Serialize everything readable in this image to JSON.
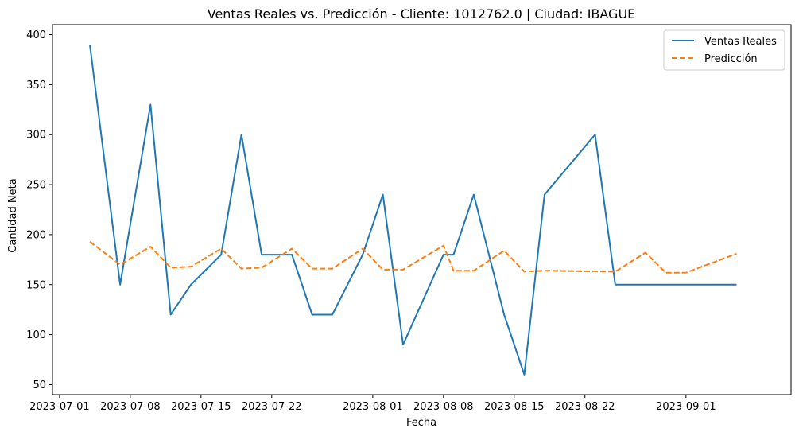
{
  "chart_data": {
    "type": "line",
    "title": "Ventas Reales vs. Predicción - Cliente: 1012762.0 | Ciudad: IBAGUE",
    "xlabel": "Fecha",
    "ylabel": "Cantidad Neta",
    "x_range": [
      "2023-07-01",
      "2023-09-07"
    ],
    "ylim": [
      40,
      410
    ],
    "x_ticks": [
      "2023-07-01",
      "2023-07-08",
      "2023-07-15",
      "2023-07-22",
      "2023-08-01",
      "2023-08-08",
      "2023-08-15",
      "2023-08-22",
      "2023-09-01"
    ],
    "y_ticks": [
      50,
      100,
      150,
      200,
      250,
      300,
      350,
      400
    ],
    "grid": false,
    "legend_position": "top-right",
    "series": [
      {
        "name": "Ventas Reales",
        "color": "#1f77b4",
        "style": "solid",
        "points": [
          {
            "x": "2023-07-04",
            "y": 390
          },
          {
            "x": "2023-07-07",
            "y": 150
          },
          {
            "x": "2023-07-10",
            "y": 330
          },
          {
            "x": "2023-07-12",
            "y": 120
          },
          {
            "x": "2023-07-14",
            "y": 150
          },
          {
            "x": "2023-07-17",
            "y": 180
          },
          {
            "x": "2023-07-19",
            "y": 300
          },
          {
            "x": "2023-07-21",
            "y": 180
          },
          {
            "x": "2023-07-24",
            "y": 180
          },
          {
            "x": "2023-07-26",
            "y": 120
          },
          {
            "x": "2023-07-28",
            "y": 120
          },
          {
            "x": "2023-07-31",
            "y": 180
          },
          {
            "x": "2023-08-02",
            "y": 240
          },
          {
            "x": "2023-08-04",
            "y": 90
          },
          {
            "x": "2023-08-08",
            "y": 180
          },
          {
            "x": "2023-08-09",
            "y": 180
          },
          {
            "x": "2023-08-11",
            "y": 240
          },
          {
            "x": "2023-08-14",
            "y": 120
          },
          {
            "x": "2023-08-16",
            "y": 60
          },
          {
            "x": "2023-08-18",
            "y": 240
          },
          {
            "x": "2023-08-23",
            "y": 300
          },
          {
            "x": "2023-08-25",
            "y": 150
          },
          {
            "x": "2023-09-06",
            "y": 150
          }
        ]
      },
      {
        "name": "Predicción",
        "color": "#ff7f0e",
        "style": "dashed",
        "points": [
          {
            "x": "2023-07-04",
            "y": 193
          },
          {
            "x": "2023-07-07",
            "y": 170
          },
          {
            "x": "2023-07-10",
            "y": 188
          },
          {
            "x": "2023-07-12",
            "y": 167
          },
          {
            "x": "2023-07-14",
            "y": 168
          },
          {
            "x": "2023-07-17",
            "y": 186
          },
          {
            "x": "2023-07-19",
            "y": 166
          },
          {
            "x": "2023-07-21",
            "y": 167
          },
          {
            "x": "2023-07-24",
            "y": 186
          },
          {
            "x": "2023-07-26",
            "y": 166
          },
          {
            "x": "2023-07-28",
            "y": 166
          },
          {
            "x": "2023-07-31",
            "y": 186
          },
          {
            "x": "2023-08-02",
            "y": 165
          },
          {
            "x": "2023-08-04",
            "y": 165
          },
          {
            "x": "2023-08-08",
            "y": 189
          },
          {
            "x": "2023-08-09",
            "y": 164
          },
          {
            "x": "2023-08-11",
            "y": 164
          },
          {
            "x": "2023-08-14",
            "y": 184
          },
          {
            "x": "2023-08-16",
            "y": 163
          },
          {
            "x": "2023-08-18",
            "y": 164
          },
          {
            "x": "2023-08-25",
            "y": 163
          },
          {
            "x": "2023-08-28",
            "y": 182
          },
          {
            "x": "2023-08-30",
            "y": 162
          },
          {
            "x": "2023-09-01",
            "y": 162
          },
          {
            "x": "2023-09-06",
            "y": 181
          }
        ]
      }
    ]
  }
}
